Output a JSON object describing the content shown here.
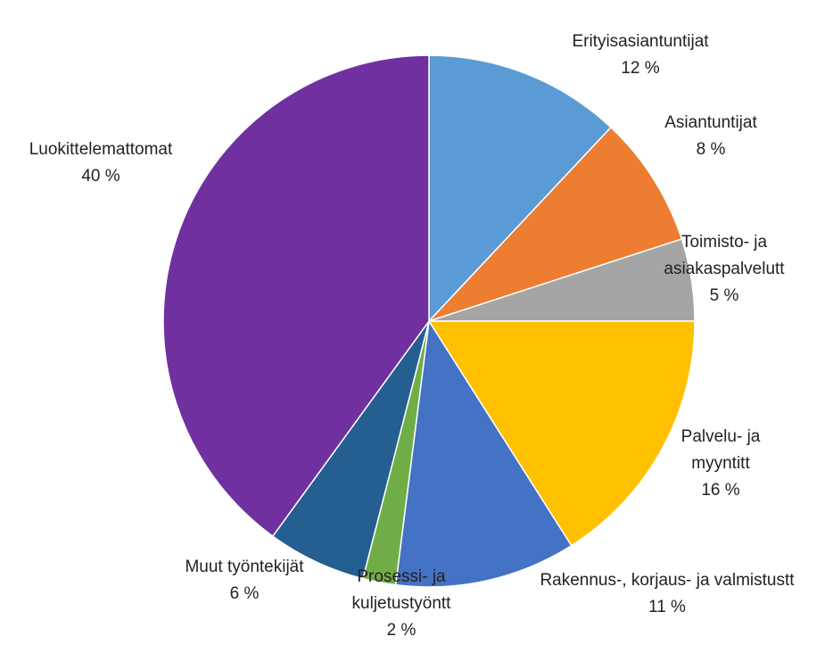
{
  "chart_data": {
    "type": "pie",
    "title": "",
    "legend": "none",
    "start_angle_deg": 0,
    "direction": "clockwise",
    "slices": [
      {
        "label_lines": [
          "Erityisasiantuntijat"
        ],
        "percent_label": "12 %",
        "value": 12,
        "color": "#5b9bd5"
      },
      {
        "label_lines": [
          "Asiantuntijat"
        ],
        "percent_label": "8 %",
        "value": 8,
        "color": "#ed7d31"
      },
      {
        "label_lines": [
          "Toimisto- ja",
          "asiakaspalvelutt"
        ],
        "percent_label": "5 %",
        "value": 5,
        "color": "#a5a5a5"
      },
      {
        "label_lines": [
          "Palvelu- ja",
          "myyntitt"
        ],
        "percent_label": "16 %",
        "value": 16,
        "color": "#ffc000"
      },
      {
        "label_lines": [
          "Rakennus-, korjaus- ja valmistustt"
        ],
        "percent_label": "11 %",
        "value": 11,
        "color": "#4472c4"
      },
      {
        "label_lines": [
          "Prosessi- ja",
          "kuljetustyöntt"
        ],
        "percent_label": "2 %",
        "value": 2,
        "color": "#70ad47"
      },
      {
        "label_lines": [
          "Muut työntekijät"
        ],
        "percent_label": "6 %",
        "value": 6,
        "color": "#255e91"
      },
      {
        "label_lines": [
          "Luokittelemattomat"
        ],
        "percent_label": "40 %",
        "value": 40,
        "color": "#7030a0"
      }
    ]
  }
}
